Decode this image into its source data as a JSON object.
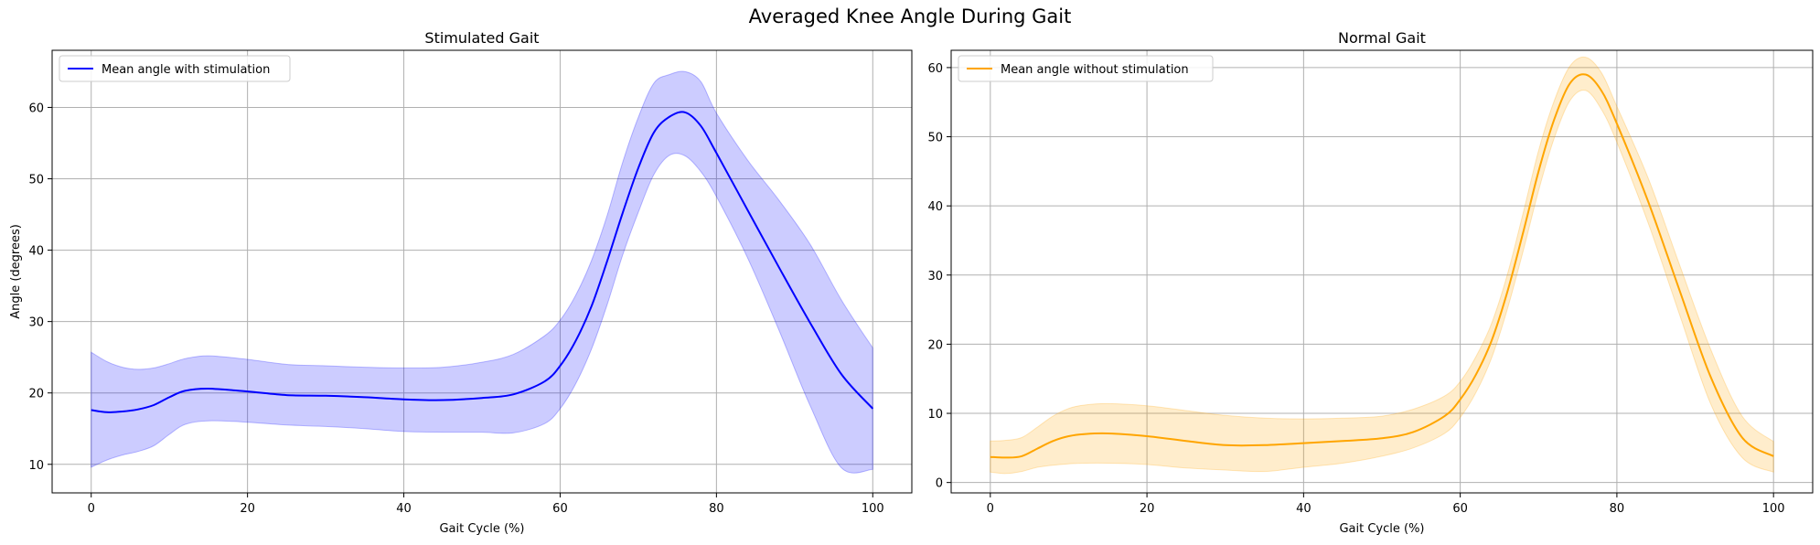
{
  "figure": {
    "title": "Averaged Knee Angle During Gait"
  },
  "chart_data": [
    {
      "type": "line",
      "title": "Stimulated Gait",
      "xlabel": "Gait Cycle (%)",
      "ylabel": "Angle (degrees)",
      "xlim": [
        -5,
        105
      ],
      "ylim": [
        6,
        68
      ],
      "xticks": [
        0,
        20,
        40,
        60,
        80,
        100
      ],
      "yticks": [
        10,
        20,
        30,
        40,
        50,
        60
      ],
      "grid": true,
      "legend_position": "upper-left",
      "series": [
        {
          "name": "Mean angle with stimulation",
          "color": "#0000ff",
          "band_color": "#0000ff",
          "x": [
            0,
            2,
            4,
            6,
            8,
            10,
            12,
            15,
            20,
            25,
            30,
            35,
            40,
            45,
            50,
            54,
            58,
            60,
            62,
            64,
            66,
            68,
            70,
            72,
            74,
            76,
            78,
            80,
            84,
            88,
            92,
            96,
            100
          ],
          "y": [
            17.6,
            17.3,
            17.4,
            17.7,
            18.3,
            19.4,
            20.3,
            20.6,
            20.2,
            19.7,
            19.6,
            19.4,
            19.1,
            19.0,
            19.3,
            19.8,
            21.6,
            23.8,
            27.3,
            32.1,
            38.4,
            45.2,
            51.5,
            56.5,
            58.7,
            59.3,
            57.4,
            53.6,
            45.6,
            37.6,
            29.8,
            22.6,
            17.8
          ],
          "upper": [
            25.7,
            24.4,
            23.6,
            23.3,
            23.5,
            24.1,
            24.8,
            25.2,
            24.7,
            24.0,
            23.8,
            23.6,
            23.5,
            23.6,
            24.3,
            25.4,
            28.0,
            30.2,
            33.7,
            38.5,
            44.8,
            52.3,
            58.6,
            63.4,
            64.6,
            65.0,
            63.6,
            59.2,
            52.6,
            47.0,
            40.8,
            33.0,
            26.3
          ],
          "lower": [
            9.6,
            10.6,
            11.3,
            11.8,
            12.6,
            14.2,
            15.6,
            16.1,
            15.9,
            15.5,
            15.3,
            15.0,
            14.6,
            14.5,
            14.5,
            14.4,
            15.7,
            17.8,
            21.3,
            26.1,
            32.3,
            39.3,
            45.3,
            50.6,
            53.3,
            53.2,
            51.0,
            47.5,
            38.9,
            28.8,
            18.2,
            9.5,
            9.3
          ]
        }
      ]
    },
    {
      "type": "line",
      "title": "Normal Gait",
      "xlabel": "Gait Cycle (%)",
      "ylabel": "",
      "xlim": [
        -5,
        105
      ],
      "ylim": [
        -1.5,
        62.5
      ],
      "xticks": [
        0,
        20,
        40,
        60,
        80,
        100
      ],
      "yticks": [
        0,
        10,
        20,
        30,
        40,
        50,
        60
      ],
      "grid": true,
      "legend_position": "upper-left",
      "series": [
        {
          "name": "Mean angle without stimulation",
          "color": "#ffa500",
          "band_color": "#ffa500",
          "x": [
            0,
            2,
            4,
            6,
            8,
            10,
            12,
            15,
            20,
            25,
            30,
            35,
            40,
            45,
            50,
            54,
            58,
            60,
            62,
            64,
            66,
            68,
            70,
            72,
            74,
            76,
            78,
            80,
            84,
            88,
            92,
            96,
            100
          ],
          "y": [
            3.7,
            3.6,
            3.8,
            4.9,
            6.0,
            6.7,
            7.0,
            7.1,
            6.7,
            6.0,
            5.4,
            5.4,
            5.7,
            6.0,
            6.4,
            7.3,
            9.6,
            12.0,
            15.6,
            20.5,
            27.5,
            36.0,
            45.0,
            52.5,
            57.7,
            59.0,
            56.7,
            51.9,
            40.6,
            27.8,
            15.2,
            6.5,
            3.8
          ],
          "upper": [
            6.0,
            6.1,
            6.5,
            8.0,
            9.6,
            10.7,
            11.2,
            11.4,
            11.1,
            10.4,
            9.7,
            9.3,
            9.2,
            9.3,
            9.6,
            10.6,
            12.5,
            14.6,
            18.2,
            23.0,
            30.0,
            38.8,
            48.0,
            55.2,
            60.2,
            61.5,
            59.3,
            54.4,
            44.0,
            31.5,
            19.2,
            9.6,
            5.9
          ],
          "lower": [
            1.5,
            1.3,
            1.6,
            2.2,
            2.5,
            2.7,
            2.8,
            2.8,
            2.6,
            2.1,
            1.8,
            1.6,
            2.2,
            2.8,
            3.8,
            5.0,
            7.1,
            9.4,
            13.0,
            18.0,
            25.0,
            33.3,
            42.2,
            49.8,
            55.2,
            56.7,
            54.0,
            49.2,
            37.5,
            24.3,
            11.3,
            3.6,
            1.5
          ]
        }
      ]
    }
  ]
}
